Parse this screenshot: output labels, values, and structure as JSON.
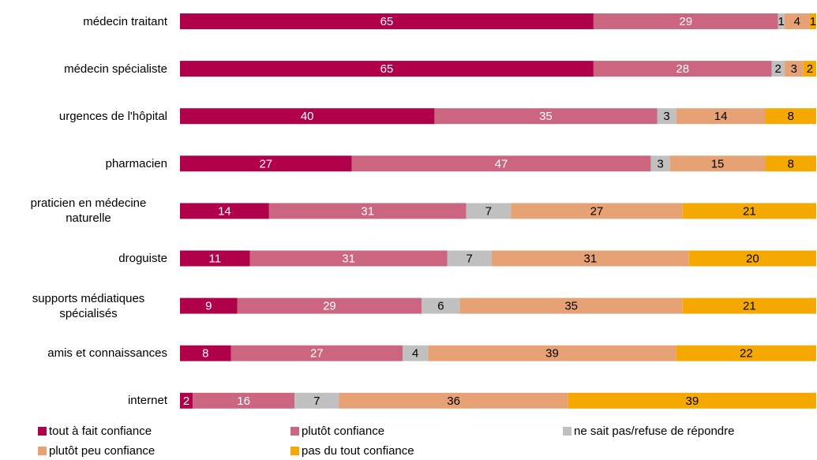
{
  "chart_data": {
    "type": "bar",
    "orientation": "horizontal",
    "stacked": true,
    "categories": [
      "médecin traitant",
      "médecin spécialiste",
      "urgences de l'hôpital",
      "pharmacien",
      "praticien en médecine naturelle",
      "droguiste",
      "supports médiatiques spécialisés",
      "amis et connaissances",
      "internet"
    ],
    "xlim": [
      0,
      100
    ],
    "series": [
      {
        "name": "tout à fait confiance",
        "color": "#b0004a",
        "label_color": "#ffffff",
        "values": [
          65,
          65,
          40,
          27,
          14,
          11,
          9,
          8,
          2
        ]
      },
      {
        "name": "plutôt confiance",
        "color": "#cc6680",
        "label_color": "#ffffff",
        "values": [
          29,
          28,
          35,
          47,
          31,
          31,
          29,
          27,
          16
        ]
      },
      {
        "name": "ne sait pas/refuse de répondre",
        "color": "#c0c0c0",
        "label_color": "#000000",
        "values": [
          1,
          2,
          3,
          3,
          7,
          7,
          6,
          4,
          7
        ]
      },
      {
        "name": "plutôt peu confiance",
        "color": "#e6a274",
        "label_color": "#000000",
        "values": [
          4,
          3,
          14,
          15,
          27,
          31,
          35,
          39,
          36
        ]
      },
      {
        "name": "pas du tout confiance",
        "color": "#f5a800",
        "label_color": "#000000",
        "values": [
          1,
          2,
          8,
          8,
          21,
          20,
          21,
          22,
          39
        ]
      }
    ]
  }
}
